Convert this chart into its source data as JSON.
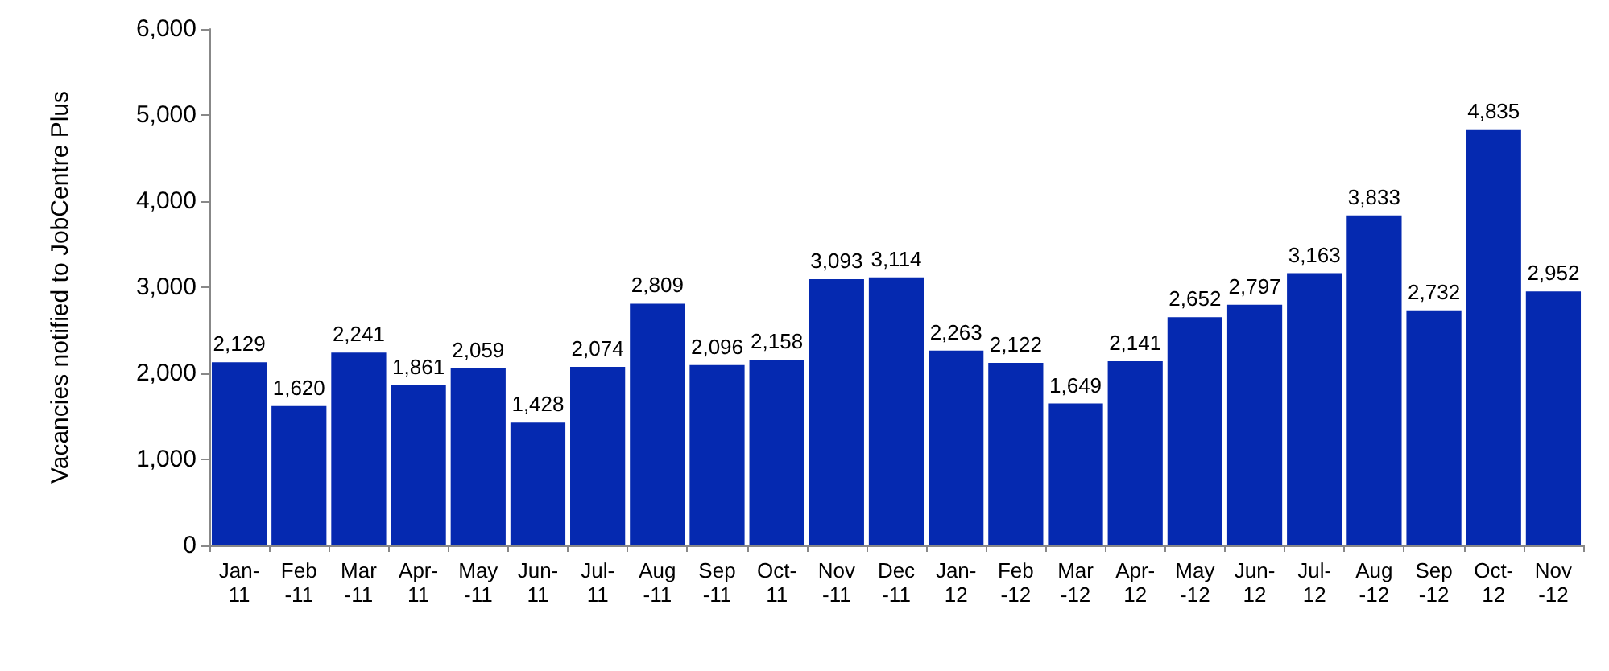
{
  "chart_data": {
    "type": "bar",
    "ylabel": "Vacancies notified to JobCentre Plus",
    "categories": [
      "Jan-\n11",
      "Feb\n-11",
      "Mar\n-11",
      "Apr-\n11",
      "May\n-11",
      "Jun-\n11",
      "Jul-\n11",
      "Aug\n-11",
      "Sep\n-11",
      "Oct-\n11",
      "Nov\n-11",
      "Dec\n-11",
      "Jan-\n12",
      "Feb\n-12",
      "Mar\n-12",
      "Apr-\n12",
      "May\n-12",
      "Jun-\n12",
      "Jul-\n12",
      "Aug\n-12",
      "Sep\n-12",
      "Oct-\n12",
      "Nov\n-12"
    ],
    "values": [
      2129,
      1620,
      2241,
      1861,
      2059,
      1428,
      2074,
      2809,
      2096,
      2158,
      3093,
      3114,
      2263,
      2122,
      1649,
      2141,
      2652,
      2797,
      3163,
      3833,
      2732,
      4835,
      2952
    ],
    "value_labels": [
      "2,129",
      "1,620",
      "2,241",
      "1,861",
      "2,059",
      "1,428",
      "2,074",
      "2,809",
      "2,096",
      "2,158",
      "3,093",
      "3,114",
      "2,263",
      "2,122",
      "1,649",
      "2,141",
      "2,652",
      "2,797",
      "3,163",
      "3,833",
      "2,732",
      "4,835",
      "2,952"
    ],
    "color": "#0529b0",
    "ylim": [
      0,
      6000
    ],
    "yticks": [
      0,
      {
        "value": 1000,
        "label": "1,000"
      },
      {
        "value": 2000,
        "label": "2,000"
      },
      {
        "value": 3000,
        "label": "3,000"
      },
      {
        "value": 4000,
        "label": "4,000"
      },
      {
        "value": 5000,
        "label": "5,000"
      },
      {
        "value": 6000,
        "label": "6,000"
      }
    ]
  }
}
